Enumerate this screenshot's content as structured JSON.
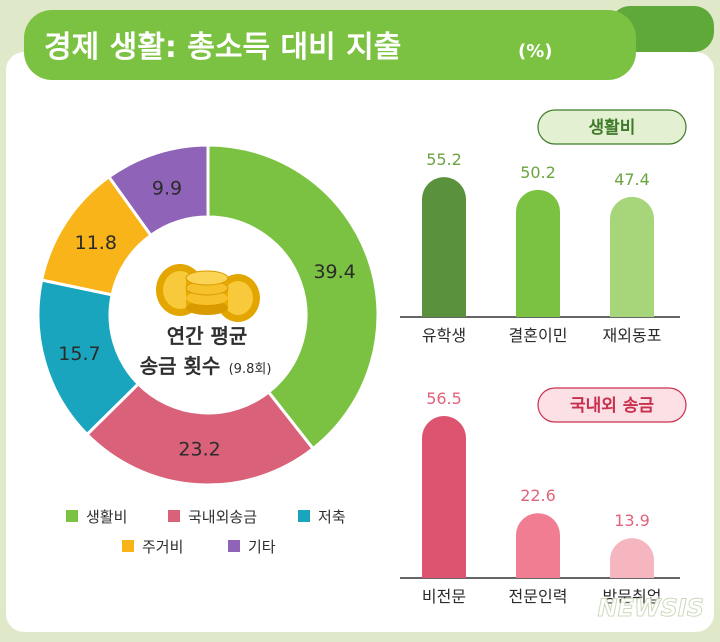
{
  "header": {
    "title": "경제 생활: 총소득 대비 지출",
    "unit": "(%)"
  },
  "donut_center": {
    "line1": "연간 평균",
    "line2": "송금 횟수",
    "note": "(9.8회)"
  },
  "legend": {
    "items": [
      {
        "label": "생활비"
      },
      {
        "label": "국내외송금"
      },
      {
        "label": "저축"
      },
      {
        "label": "주거비"
      },
      {
        "label": "기타"
      }
    ]
  },
  "watermark": "NEWSIS",
  "chart_data": [
    {
      "type": "pie",
      "categories": [
        "생활비",
        "국내외송금",
        "저축",
        "주거비",
        "기타"
      ],
      "values": [
        39.4,
        23.2,
        15.7,
        11.8,
        9.9
      ],
      "colors": [
        "#7cc242",
        "#d9627a",
        "#19a5bd",
        "#f8b418",
        "#8f63b8"
      ],
      "donut": true,
      "start": "12 o'clock, clockwise"
    },
    {
      "type": "bar",
      "title": "생활비",
      "categories": [
        "유학생",
        "결혼이민",
        "재외동포"
      ],
      "values": [
        55.2,
        50.2,
        47.4
      ],
      "colors": [
        "#5a913d",
        "#7cc242",
        "#a6d57a"
      ],
      "value_color": "#6aa43f",
      "title_color": "#3f7a2a",
      "title_bg": "#e3f1d2",
      "ylim": [
        0,
        60
      ]
    },
    {
      "type": "bar",
      "title": "국내외 송금",
      "categories": [
        "비전문",
        "전문인력",
        "방문취업"
      ],
      "values": [
        56.5,
        22.6,
        13.9
      ],
      "colors": [
        "#dd5470",
        "#f07d92",
        "#f5b6c0"
      ],
      "value_color": "#e0637a",
      "title_color": "#c9304e",
      "title_bg": "#fbe0e5",
      "ylim": [
        0,
        60
      ]
    }
  ]
}
